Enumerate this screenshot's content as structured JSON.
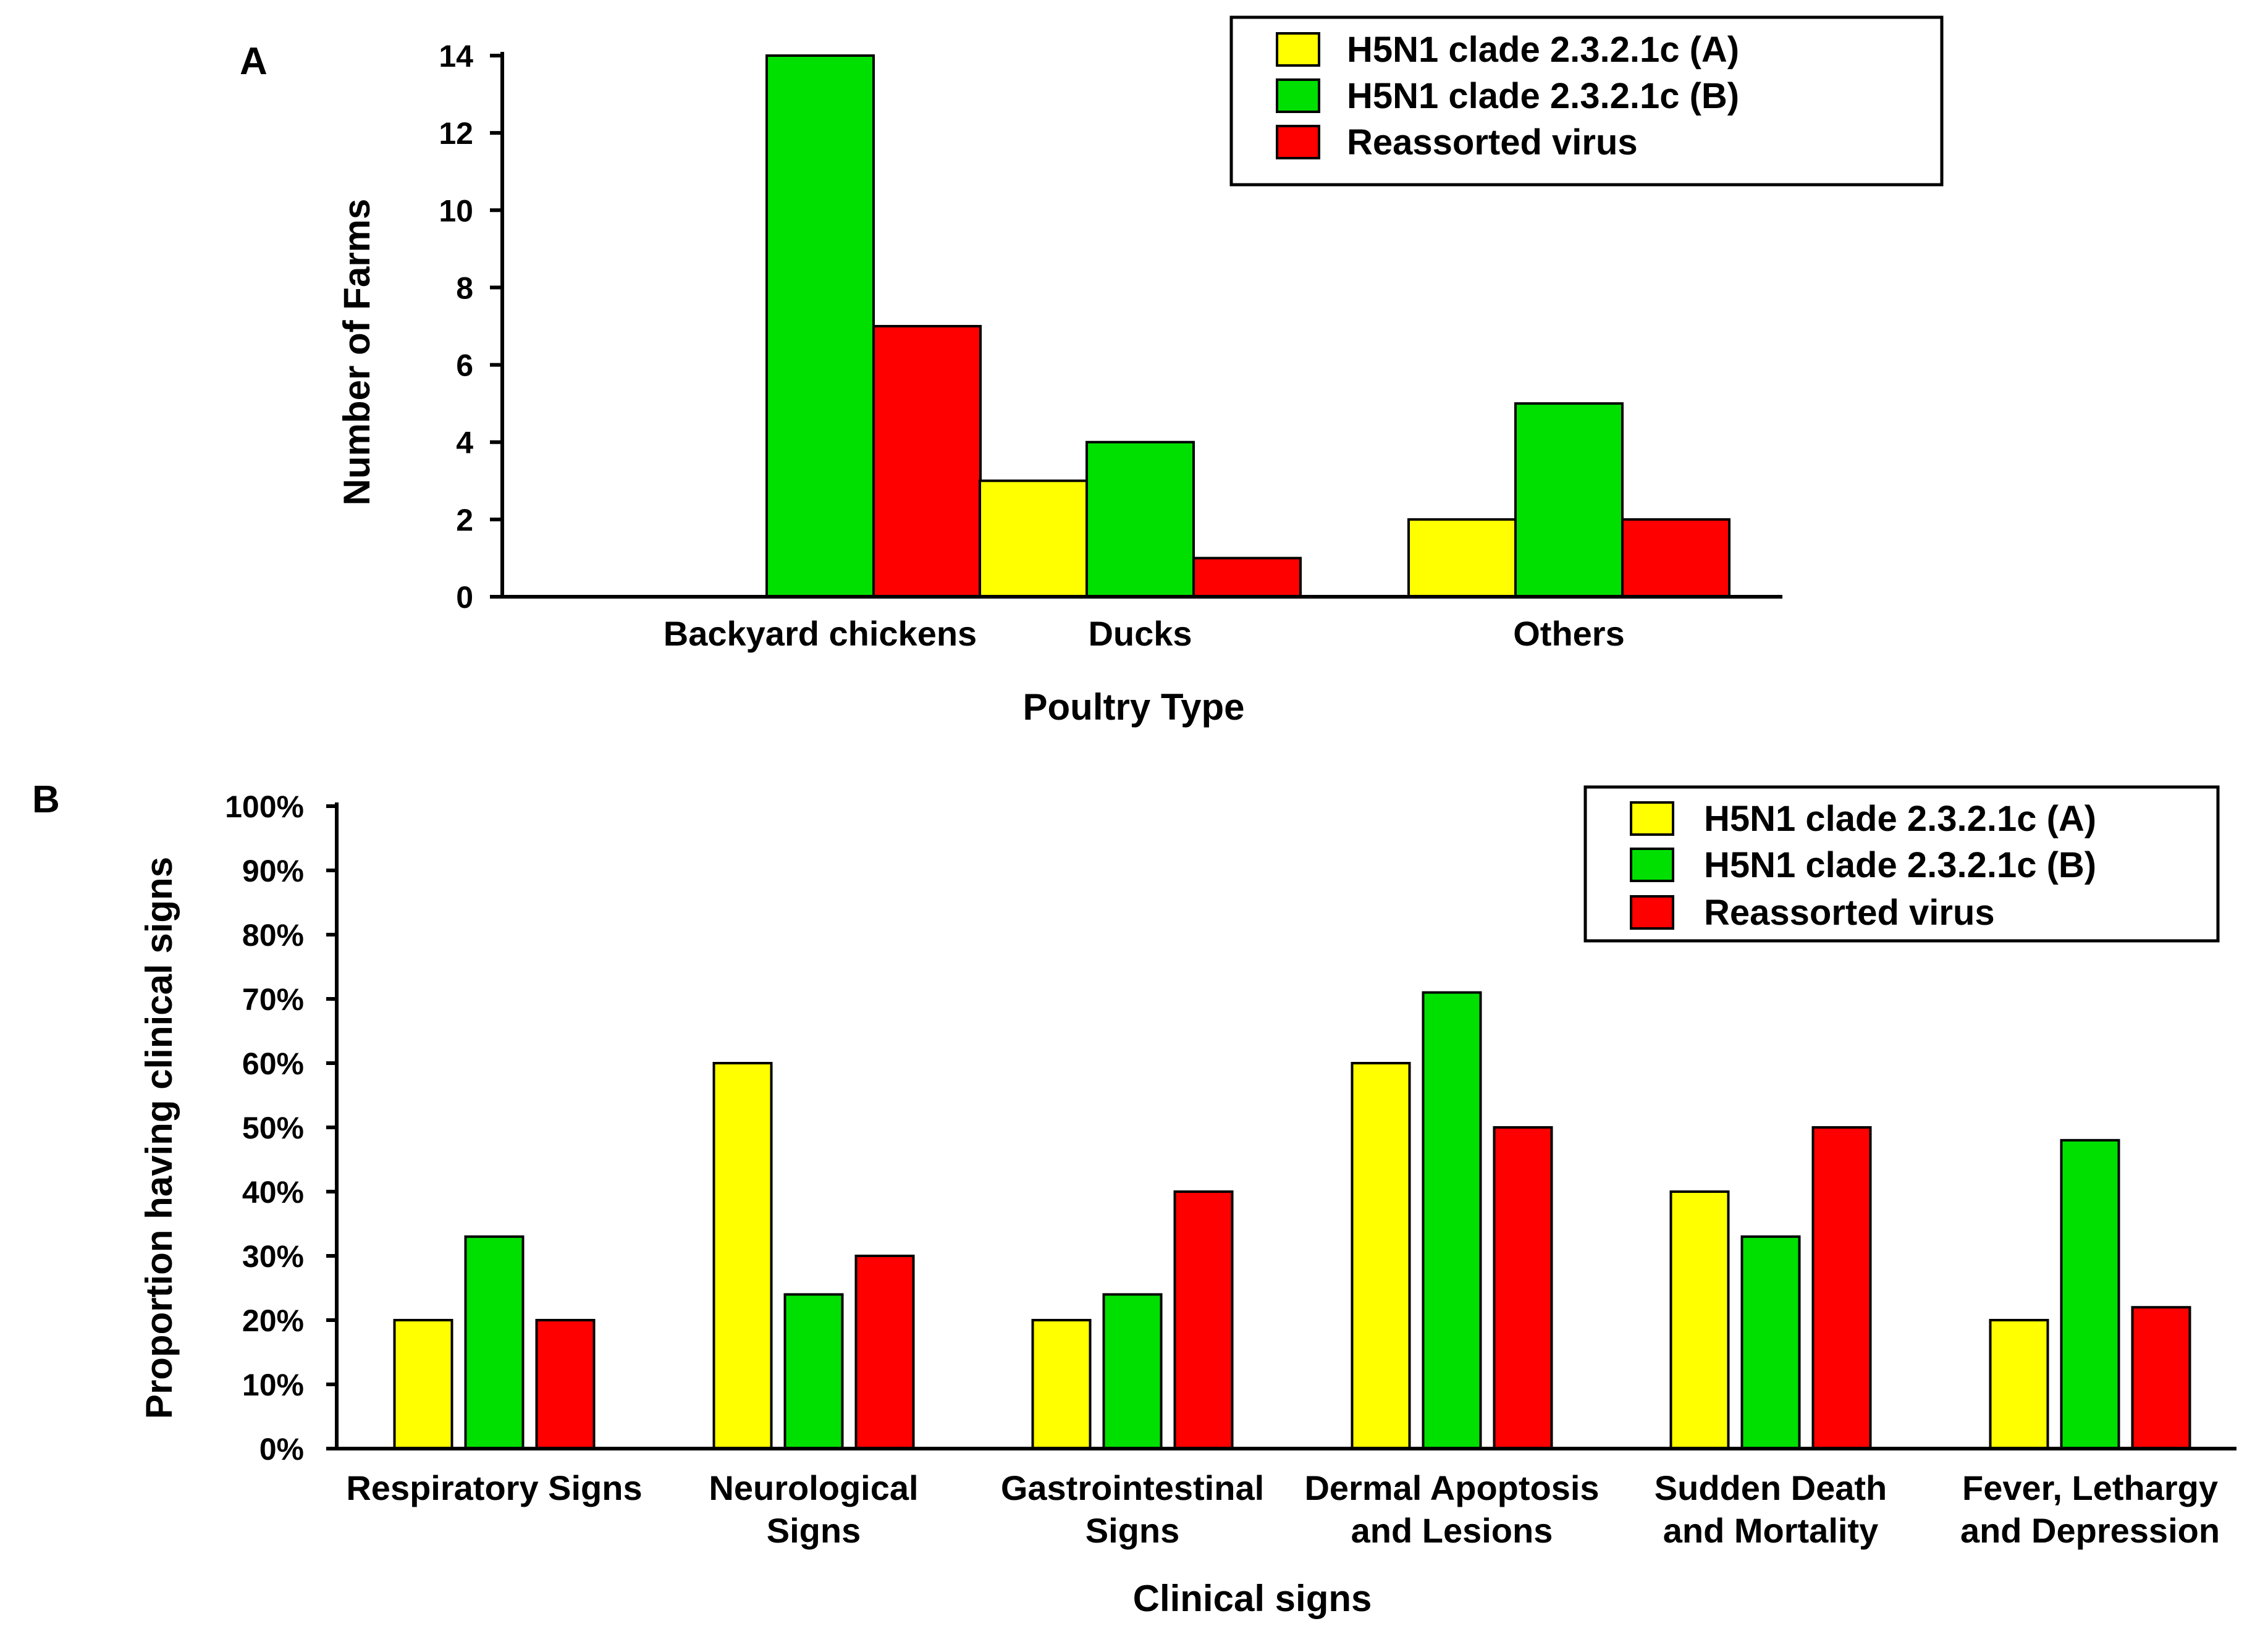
{
  "colors": {
    "series_a": "#ffff00",
    "series_b": "#00e000",
    "series_r": "#ff0000"
  },
  "chart_data": [
    {
      "type": "bar",
      "panel": "A",
      "categories": [
        "Backyard chickens",
        "Ducks",
        "Others"
      ],
      "series": [
        {
          "name": "H5N1 clade 2.3.2.1c (A)",
          "values": [
            0,
            3,
            2
          ]
        },
        {
          "name": "H5N1 clade 2.3.2.1c (B)",
          "values": [
            14,
            4,
            5
          ]
        },
        {
          "name": "Reassorted virus",
          "values": [
            7,
            1,
            2
          ]
        }
      ],
      "xlabel": "Poultry Type",
      "ylabel": "Number of Farms",
      "ylim": [
        0,
        14
      ],
      "yticks": [
        "0",
        "2",
        "4",
        "6",
        "8",
        "10",
        "12",
        "14"
      ],
      "legend": "top-right",
      "grid": false
    },
    {
      "type": "bar",
      "panel": "B",
      "categories": [
        [
          "Respiratory Signs"
        ],
        [
          "Neurological",
          "Signs"
        ],
        [
          "Gastrointestinal",
          "Signs"
        ],
        [
          "Dermal Apoptosis",
          "and Lesions"
        ],
        [
          "Sudden Death",
          "and Mortality"
        ],
        [
          "Fever, Lethargy",
          "and Depression"
        ]
      ],
      "series": [
        {
          "name": "H5N1 clade 2.3.2.1c (A)",
          "values": [
            20,
            60,
            20,
            60,
            40,
            20
          ]
        },
        {
          "name": "H5N1 clade 2.3.2.1c (B)",
          "values": [
            33,
            24,
            24,
            71,
            33,
            48
          ]
        },
        {
          "name": "Reassorted virus",
          "values": [
            20,
            30,
            40,
            50,
            50,
            22
          ]
        }
      ],
      "xlabel": "Clinical signs",
      "ylabel": "Proportion having clinical signs",
      "ylim": [
        0,
        100
      ],
      "yticks": [
        "0%",
        "10%",
        "20%",
        "30%",
        "40%",
        "50%",
        "60%",
        "70%",
        "80%",
        "90%",
        "100%"
      ],
      "legend": "top-right",
      "grid": false
    }
  ]
}
